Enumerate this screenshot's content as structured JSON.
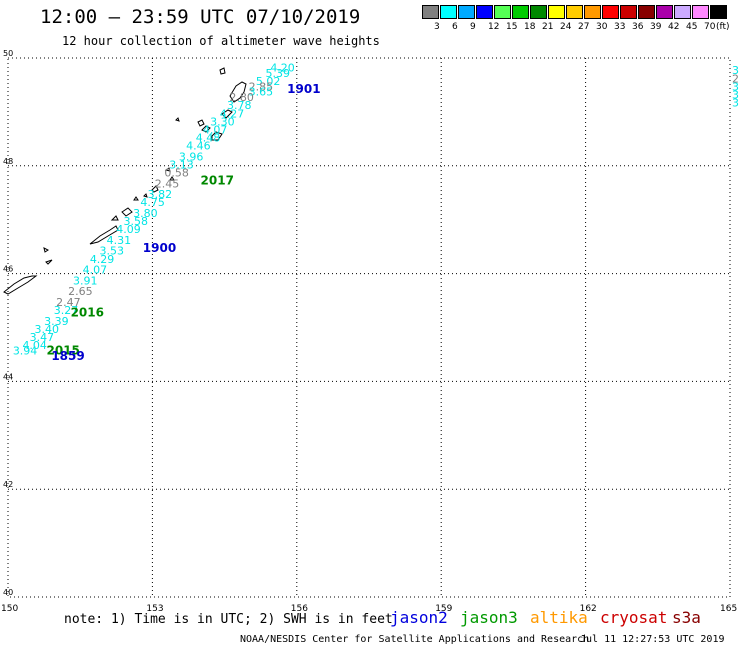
{
  "header": {
    "title": "12:00 — 23:59 UTC 07/10/2019",
    "subtitle": "12 hour collection of altimeter wave heights"
  },
  "legend": {
    "unit": "(ft)",
    "items": [
      {
        "label": "3",
        "color": "#808080"
      },
      {
        "label": "6",
        "color": "#00ffff"
      },
      {
        "label": "9",
        "color": "#00aaff"
      },
      {
        "label": "12",
        "color": "#0000ff"
      },
      {
        "label": "15",
        "color": "#55ff55"
      },
      {
        "label": "18",
        "color": "#00cc00"
      },
      {
        "label": "21",
        "color": "#008800"
      },
      {
        "label": "24",
        "color": "#ffff00"
      },
      {
        "label": "27",
        "color": "#ffcc00"
      },
      {
        "label": "30",
        "color": "#ff9900"
      },
      {
        "label": "33",
        "color": "#ff0000"
      },
      {
        "label": "36",
        "color": "#cc0000"
      },
      {
        "label": "39",
        "color": "#880000"
      },
      {
        "label": "42",
        "color": "#aa00aa"
      },
      {
        "label": "45",
        "color": "#ccaaff"
      },
      {
        "label": "70",
        "color": "#ff88ff"
      },
      {
        "label": "",
        "color": "#000000"
      }
    ]
  },
  "map": {
    "lat_labels": [
      "50",
      "48",
      "46",
      "44",
      "42",
      "40"
    ],
    "lon_labels": [
      "150",
      "153",
      "156",
      "159",
      "162",
      "165"
    ],
    "pass_labels": [
      {
        "text": "1901",
        "lon": 155.8,
        "lat": 49.35,
        "color": "#0000cc"
      },
      {
        "text": "2017",
        "lon": 154.0,
        "lat": 47.65,
        "color": "#008800"
      },
      {
        "text": "1900",
        "lon": 152.8,
        "lat": 46.4,
        "color": "#0000cc"
      },
      {
        "text": "2016",
        "lon": 151.3,
        "lat": 45.2,
        "color": "#008800"
      },
      {
        "text": "2015",
        "lon": 150.8,
        "lat": 44.5,
        "color": "#008800"
      },
      {
        "text": "1859",
        "lon": 150.9,
        "lat": 44.4,
        "color": "#0000cc"
      }
    ],
    "wave_values": [
      {
        "text": "4.20",
        "lon": 155.45,
        "lat": 49.75,
        "color": "#00e5e5"
      },
      {
        "text": "5.39",
        "lon": 155.35,
        "lat": 49.65,
        "color": "#00e5e5"
      },
      {
        "text": "5.02",
        "lon": 155.15,
        "lat": 49.5,
        "color": "#00e5e5"
      },
      {
        "text": "2.85",
        "lon": 155.0,
        "lat": 49.4,
        "color": "#808080"
      },
      {
        "text": "3.65",
        "lon": 155.0,
        "lat": 49.3,
        "color": "#00e5e5"
      },
      {
        "text": "2.80",
        "lon": 154.6,
        "lat": 49.2,
        "color": "#808080"
      },
      {
        "text": "3.78",
        "lon": 154.55,
        "lat": 49.05,
        "color": "#00e5e5"
      },
      {
        "text": "4.27",
        "lon": 154.4,
        "lat": 48.9,
        "color": "#00e5e5"
      },
      {
        "text": "3.30",
        "lon": 154.2,
        "lat": 48.75,
        "color": "#00e5e5"
      },
      {
        "text": "4.07",
        "lon": 154.05,
        "lat": 48.6,
        "color": "#00e5e5"
      },
      {
        "text": "4.48",
        "lon": 153.9,
        "lat": 48.45,
        "color": "#00e5e5"
      },
      {
        "text": "4.46",
        "lon": 153.7,
        "lat": 48.3,
        "color": "#00e5e5"
      },
      {
        "text": "3.96",
        "lon": 153.55,
        "lat": 48.1,
        "color": "#00e5e5"
      },
      {
        "text": "3.13",
        "lon": 153.35,
        "lat": 47.95,
        "color": "#00e5e5"
      },
      {
        "text": "0.58",
        "lon": 153.25,
        "lat": 47.8,
        "color": "#808080"
      },
      {
        "text": "2.45",
        "lon": 153.05,
        "lat": 47.6,
        "color": "#808080"
      },
      {
        "text": "3.82",
        "lon": 152.9,
        "lat": 47.4,
        "color": "#00e5e5"
      },
      {
        "text": "4.75",
        "lon": 152.75,
        "lat": 47.25,
        "color": "#00e5e5"
      },
      {
        "text": "3.80",
        "lon": 152.6,
        "lat": 47.05,
        "color": "#00e5e5"
      },
      {
        "text": "3.58",
        "lon": 152.4,
        "lat": 46.9,
        "color": "#00e5e5"
      },
      {
        "text": "4.09",
        "lon": 152.25,
        "lat": 46.75,
        "color": "#00e5e5"
      },
      {
        "text": "4.31",
        "lon": 152.05,
        "lat": 46.55,
        "color": "#00e5e5"
      },
      {
        "text": "3.53",
        "lon": 151.9,
        "lat": 46.35,
        "color": "#00e5e5"
      },
      {
        "text": "4.29",
        "lon": 151.7,
        "lat": 46.2,
        "color": "#00e5e5"
      },
      {
        "text": "4.07",
        "lon": 151.55,
        "lat": 46.0,
        "color": "#00e5e5"
      },
      {
        "text": "3.91",
        "lon": 151.35,
        "lat": 45.8,
        "color": "#00e5e5"
      },
      {
        "text": "2.65",
        "lon": 151.25,
        "lat": 45.6,
        "color": "#808080"
      },
      {
        "text": "2.47",
        "lon": 151.0,
        "lat": 45.4,
        "color": "#808080"
      },
      {
        "text": "3.27",
        "lon": 150.95,
        "lat": 45.25,
        "color": "#00e5e5"
      },
      {
        "text": "3.39",
        "lon": 150.75,
        "lat": 45.05,
        "color": "#00e5e5"
      },
      {
        "text": "3.40",
        "lon": 150.55,
        "lat": 44.9,
        "color": "#00e5e5"
      },
      {
        "text": "3.47",
        "lon": 150.45,
        "lat": 44.75,
        "color": "#00e5e5"
      },
      {
        "text": "4.04",
        "lon": 150.3,
        "lat": 44.6,
        "color": "#00e5e5"
      },
      {
        "text": "3.94",
        "lon": 150.1,
        "lat": 44.5,
        "color": "#00e5e5"
      }
    ],
    "edge_values": [
      {
        "text": "3",
        "lat": 49.7,
        "color": "#00e5e5"
      },
      {
        "text": "2",
        "lat": 49.55,
        "color": "#808080"
      },
      {
        "text": "3",
        "lat": 49.4,
        "color": "#00e5e5"
      },
      {
        "text": "3",
        "lat": 49.25,
        "color": "#00e5e5"
      },
      {
        "text": "3",
        "lat": 49.1,
        "color": "#00e5e5"
      }
    ]
  },
  "footer": {
    "note": "note: 1) Time is in UTC; 2) SWH is in feet",
    "satellites": [
      {
        "label": "jason2",
        "color": "#0000dd"
      },
      {
        "label": "jason3",
        "color": "#009900"
      },
      {
        "label": "altika",
        "color": "#ff9900"
      },
      {
        "label": "cryosat",
        "color": "#cc0000"
      },
      {
        "label": "s3a",
        "color": "#880000"
      }
    ],
    "credit": "NOAA/NESDIS Center for Satellite Applications and Research",
    "timestamp": "Jul 11 12:27:53 UTC 2019"
  }
}
